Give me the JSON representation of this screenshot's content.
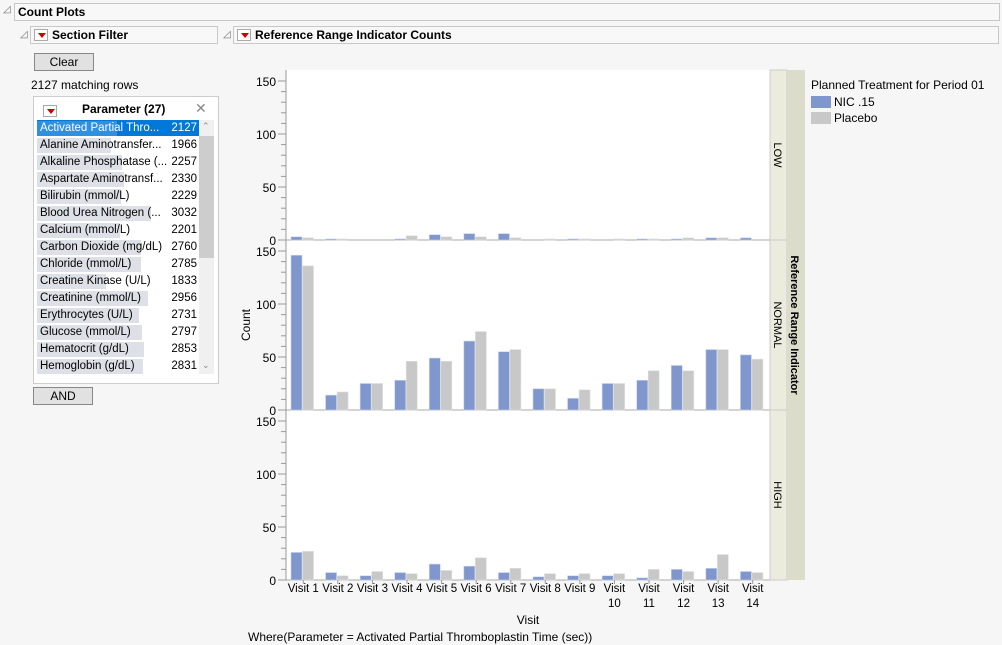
{
  "window": {
    "title": "Count Plots"
  },
  "filter": {
    "title": "Section Filter",
    "clear_label": "Clear",
    "matching": "2127 matching rows",
    "param_title": "Parameter (27)",
    "and_label": "AND",
    "items": [
      {
        "label": "Activated Partial Thro...",
        "count": "2127",
        "selected": true
      },
      {
        "label": "Alanine Aminotransfer...",
        "count": "1966"
      },
      {
        "label": "Alkaline Phosphatase (...",
        "count": "2257"
      },
      {
        "label": "Aspartate Aminotransf...",
        "count": "2330"
      },
      {
        "label": "Bilirubin (mmol/L)",
        "count": "2229"
      },
      {
        "label": "Blood Urea Nitrogen (...",
        "count": "3032"
      },
      {
        "label": "Calcium (mmol/L)",
        "count": "2201"
      },
      {
        "label": "Carbon Dioxide (mg/dL)",
        "count": "2760"
      },
      {
        "label": "Chloride (mmol/L)",
        "count": "2785"
      },
      {
        "label": "Creatine Kinase (U/L)",
        "count": "1833"
      },
      {
        "label": "Creatinine (mmol/L)",
        "count": "2956"
      },
      {
        "label": "Erythrocytes (U/L)",
        "count": "2731"
      },
      {
        "label": "Glucose (mmol/L)",
        "count": "2797"
      },
      {
        "label": "Hematocrit (g/dL)",
        "count": "2853"
      },
      {
        "label": "Hemoglobin (g/dL)",
        "count": "2831"
      }
    ]
  },
  "report": {
    "title": "Reference Range Indicator Counts",
    "where": "Where(Parameter = Activated Partial Thromboplastin Time (sec))"
  },
  "chart_data": {
    "type": "bar",
    "xlabel": "Visit",
    "ylabel": "Count",
    "ylim": [
      0,
      150
    ],
    "yticks": [
      0,
      50,
      100,
      150
    ],
    "categories": [
      "Visit 1",
      "Visit 2",
      "Visit 3",
      "Visit 4",
      "Visit 5",
      "Visit 6",
      "Visit 7",
      "Visit 8",
      "Visit 9",
      "Visit 10",
      "Visit 11",
      "Visit 12",
      "Visit 13",
      "Visit 14"
    ],
    "facet_title": "Reference Range Indicator",
    "legend": {
      "title": "Planned Treatment for Period 01",
      "placement": "right"
    },
    "series_colors": {
      "NIC .15": "#7f97cc",
      "Placebo": "#c8c8c8"
    },
    "panels": [
      {
        "name": "LOW",
        "series": [
          {
            "name": "NIC .15",
            "values": [
              3,
              1,
              0,
              1,
              5,
              6,
              6,
              0,
              1,
              0,
              1,
              1,
              2,
              2
            ]
          },
          {
            "name": "Placebo",
            "values": [
              2,
              1,
              0,
              4,
              3,
              3,
              2,
              1,
              1,
              1,
              1,
              2,
              2,
              0
            ]
          }
        ]
      },
      {
        "name": "NORMAL",
        "series": [
          {
            "name": "NIC .15",
            "values": [
              146,
              14,
              25,
              28,
              49,
              65,
              55,
              20,
              11,
              25,
              28,
              42,
              57,
              52
            ]
          },
          {
            "name": "Placebo",
            "values": [
              136,
              17,
              25,
              46,
              46,
              74,
              57,
              20,
              19,
              25,
              37,
              37,
              57,
              48
            ]
          }
        ]
      },
      {
        "name": "HIGH",
        "series": [
          {
            "name": "NIC .15",
            "values": [
              26,
              7,
              4,
              7,
              15,
              13,
              7,
              3,
              4,
              4,
              2,
              10,
              11,
              8
            ]
          },
          {
            "name": "Placebo",
            "values": [
              27,
              4,
              8,
              6,
              9,
              21,
              11,
              6,
              6,
              6,
              10,
              8,
              24,
              7
            ]
          }
        ]
      }
    ]
  }
}
